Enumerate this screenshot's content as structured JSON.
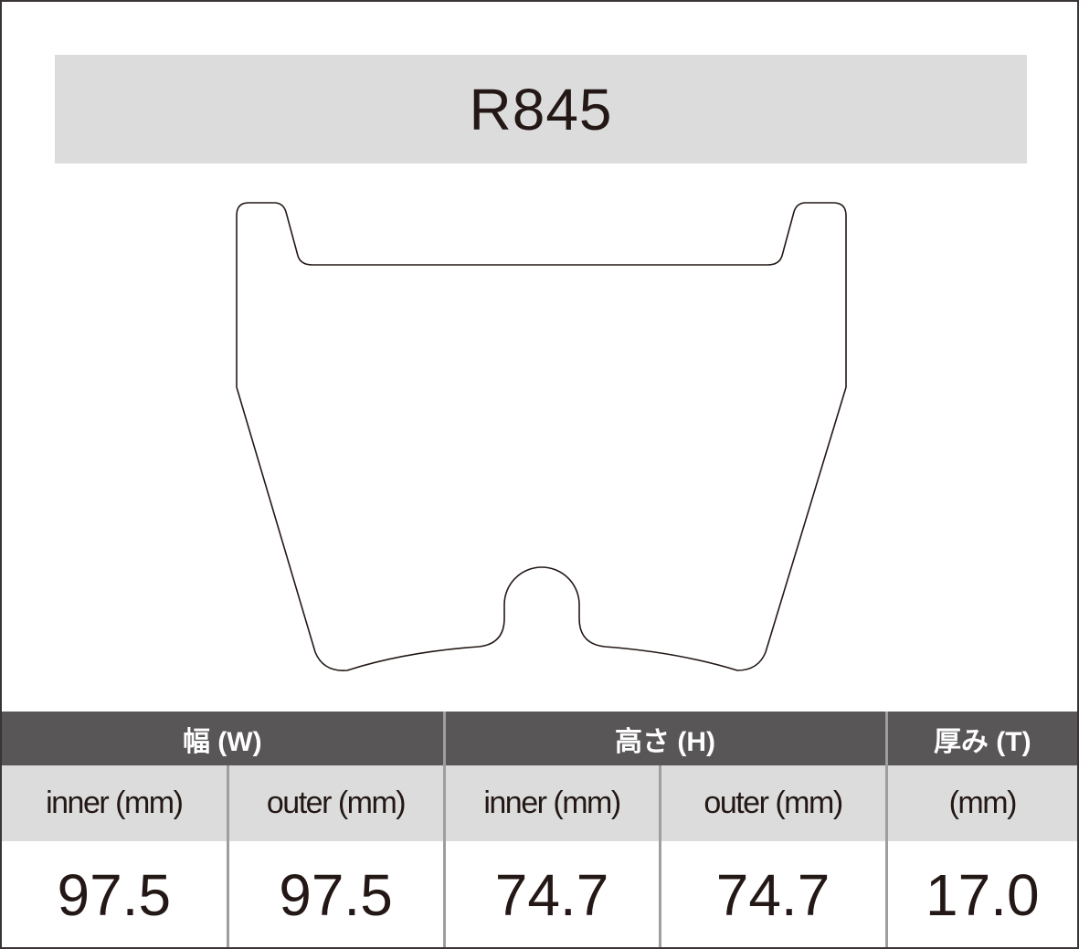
{
  "title": "R845",
  "table": {
    "groups": [
      {
        "label": "幅 (W)"
      },
      {
        "label": "高さ (H)"
      },
      {
        "label": "厚み (T)"
      }
    ],
    "subheaders": [
      "inner (mm)",
      "outer (mm)",
      "inner (mm)",
      "outer (mm)",
      "(mm)"
    ],
    "values": [
      "97.5",
      "97.5",
      "74.7",
      "74.7",
      "17.0"
    ]
  },
  "colors": {
    "header_bg": "#595657",
    "title_bg": "#dcdcdc",
    "subheader_bg": "#dcdcdc",
    "text": "#231815"
  }
}
